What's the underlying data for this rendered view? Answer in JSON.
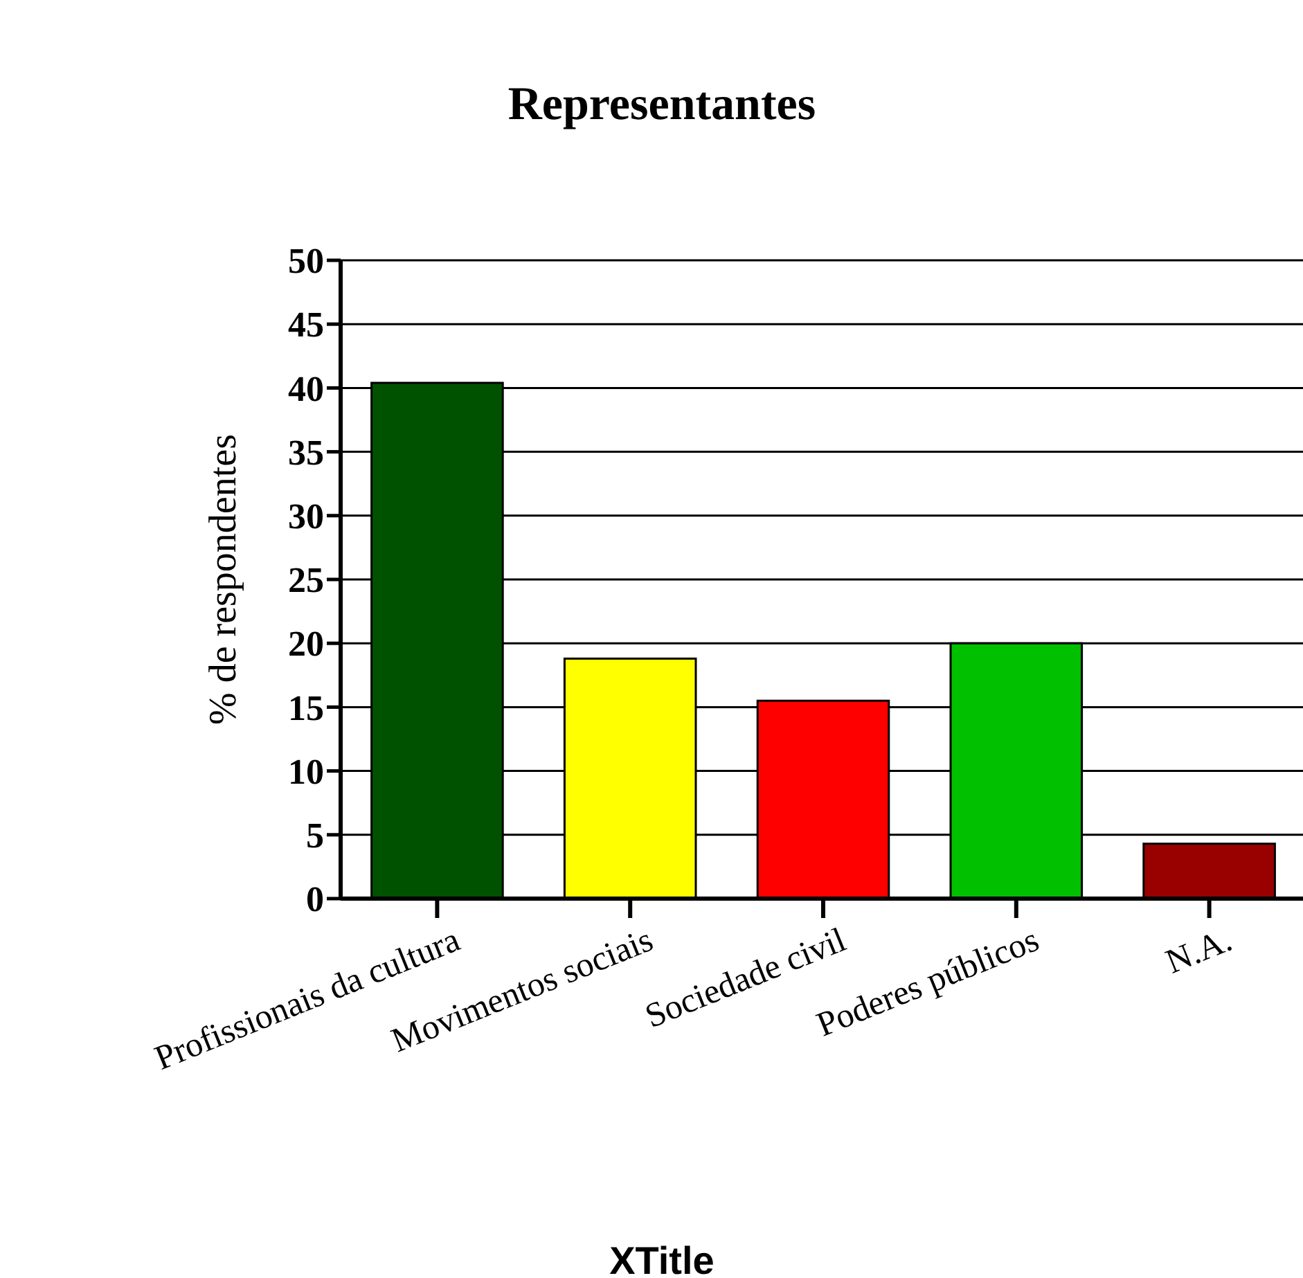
{
  "chart_data": {
    "type": "bar",
    "title": "Representantes",
    "xlabel": "XTitle",
    "ylabel": "% de respondentes",
    "categories": [
      "Profissionais da cultura",
      "Movimentos sociais",
      "Sociedade civil",
      "Poderes públicos",
      "N.A."
    ],
    "values": [
      40.4,
      18.8,
      15.5,
      20.0,
      4.3
    ],
    "colors": [
      "#005200",
      "#ffff00",
      "#ff0000",
      "#00c000",
      "#990000"
    ],
    "ylim": [
      0,
      50
    ],
    "yticks": [
      0,
      5,
      10,
      15,
      20,
      25,
      30,
      35,
      40,
      45,
      50
    ],
    "grid": "y"
  }
}
